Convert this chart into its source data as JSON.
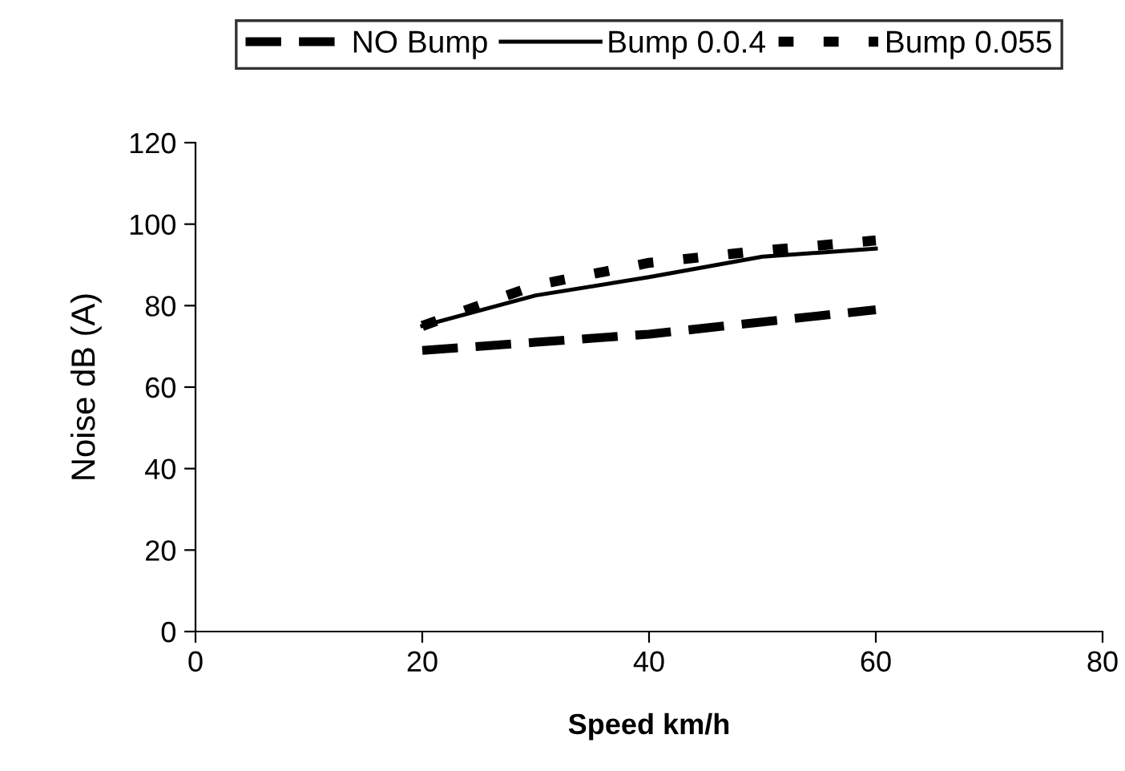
{
  "chart_data": {
    "type": "line",
    "xlabel": "Speed km/h",
    "ylabel": "Noise dB (A)",
    "x": [
      20,
      30,
      40,
      50,
      60
    ],
    "series": [
      {
        "name": "NO Bump",
        "color": "#000000",
        "line_style": "dashed",
        "values": [
          69,
          71,
          73,
          76,
          79
        ]
      },
      {
        "name": "Bump 0.0.4",
        "color": "#000000",
        "line_style": "solid",
        "values": [
          75,
          82.5,
          87,
          92,
          94
        ]
      },
      {
        "name": "Bump 0.055",
        "color": "#000000",
        "line_style": "dotted",
        "values": [
          75,
          85,
          90.5,
          93.5,
          96
        ]
      }
    ],
    "xlim": [
      0,
      80
    ],
    "xticks": [
      0,
      20,
      40,
      60,
      80
    ],
    "ylim": [
      0,
      120
    ],
    "yticks": [
      0,
      20,
      40,
      60,
      80,
      100,
      120
    ],
    "grid": false,
    "legend": "top",
    "marker": "none"
  }
}
